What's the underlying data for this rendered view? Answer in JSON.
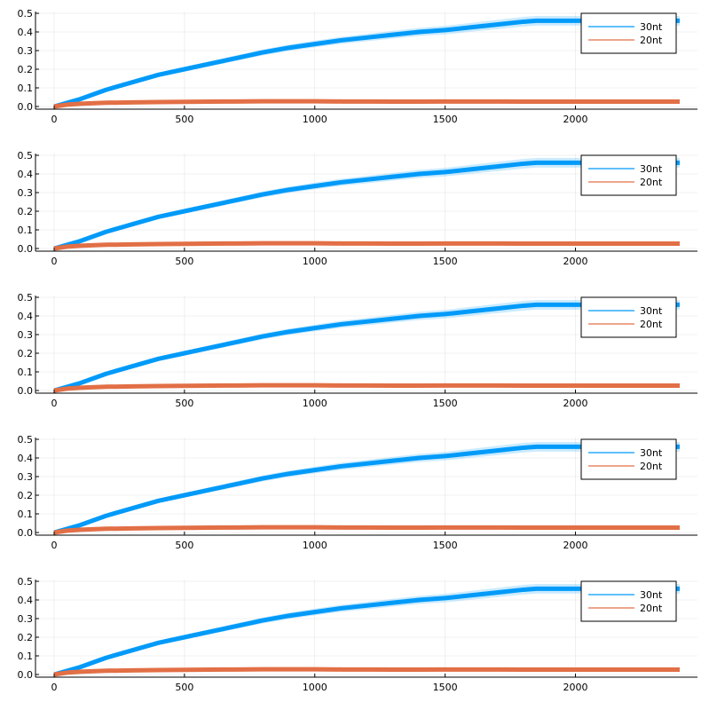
{
  "chart_data": [
    {
      "type": "line",
      "title": "",
      "xlabel": "",
      "ylabel": "",
      "xlim": [
        0,
        2400
      ],
      "ylim": [
        0,
        0.5
      ],
      "xticks": [
        "0",
        "500",
        "1000",
        "1500",
        "2000"
      ],
      "yticks": [
        "0.0",
        "0.1",
        "0.2",
        "0.3",
        "0.4",
        "0.5"
      ],
      "grid": true,
      "legend_position": "top-right",
      "series": [
        {
          "name": "30nt",
          "color": "#009af9",
          "x": [
            0,
            100,
            200,
            300,
            400,
            500,
            600,
            700,
            800,
            900,
            1000,
            1100,
            1200,
            1300,
            1400,
            1500,
            1600,
            1700,
            1800,
            1850,
            1900,
            2000,
            2100,
            2200,
            2300,
            2400
          ],
          "y": [
            0,
            0.04,
            0.09,
            0.13,
            0.17,
            0.2,
            0.23,
            0.26,
            0.29,
            0.315,
            0.335,
            0.355,
            0.37,
            0.385,
            0.4,
            0.41,
            0.425,
            0.44,
            0.455,
            0.46,
            0.46,
            0.46,
            0.46,
            0.46,
            0.46,
            0.46
          ],
          "band": [
            0,
            0.005,
            0.008,
            0.01,
            0.012,
            0.013,
            0.014,
            0.015,
            0.016,
            0.017,
            0.018,
            0.019,
            0.02,
            0.021,
            0.022,
            0.023,
            0.024,
            0.025,
            0.026,
            0.026,
            0.026,
            0.026,
            0.026,
            0.026,
            0.026,
            0.026
          ]
        },
        {
          "name": "20nt",
          "color": "#e26f46",
          "x": [
            0,
            50,
            100,
            200,
            300,
            400,
            500,
            600,
            700,
            800,
            900,
            1000,
            1100,
            1200,
            1300,
            1400,
            1500,
            1600,
            1700,
            1800,
            1900,
            2000,
            2100,
            2200,
            2300,
            2400
          ],
          "y": [
            0,
            0.01,
            0.015,
            0.02,
            0.022,
            0.024,
            0.025,
            0.026,
            0.027,
            0.028,
            0.028,
            0.028,
            0.027,
            0.027,
            0.026,
            0.026,
            0.027,
            0.027,
            0.027,
            0.026,
            0.026,
            0.026,
            0.026,
            0.026,
            0.026,
            0.026
          ]
        }
      ]
    },
    {
      "type": "line",
      "title": "",
      "xlabel": "",
      "ylabel": "",
      "xlim": [
        0,
        2400
      ],
      "ylim": [
        0,
        0.5
      ],
      "xticks": [
        "0",
        "500",
        "1000",
        "1500",
        "2000"
      ],
      "yticks": [
        "0.0",
        "0.1",
        "0.2",
        "0.3",
        "0.4",
        "0.5"
      ],
      "grid": true,
      "legend_position": "top-right",
      "series": [
        {
          "name": "30nt",
          "color": "#009af9",
          "x": [
            0,
            100,
            200,
            300,
            400,
            500,
            600,
            700,
            800,
            900,
            1000,
            1100,
            1200,
            1300,
            1400,
            1500,
            1600,
            1700,
            1800,
            1850,
            1900,
            2000,
            2100,
            2200,
            2300,
            2400
          ],
          "y": [
            0,
            0.04,
            0.09,
            0.13,
            0.17,
            0.2,
            0.23,
            0.26,
            0.29,
            0.315,
            0.335,
            0.355,
            0.37,
            0.385,
            0.4,
            0.41,
            0.425,
            0.44,
            0.455,
            0.46,
            0.46,
            0.46,
            0.46,
            0.46,
            0.46,
            0.46
          ],
          "band": [
            0,
            0.005,
            0.008,
            0.01,
            0.012,
            0.013,
            0.014,
            0.015,
            0.016,
            0.017,
            0.018,
            0.019,
            0.02,
            0.021,
            0.022,
            0.023,
            0.024,
            0.025,
            0.026,
            0.026,
            0.026,
            0.026,
            0.026,
            0.026,
            0.026,
            0.026
          ]
        },
        {
          "name": "20nt",
          "color": "#e26f46",
          "x": [
            0,
            50,
            100,
            200,
            300,
            400,
            500,
            600,
            700,
            800,
            900,
            1000,
            1100,
            1200,
            1300,
            1400,
            1500,
            1600,
            1700,
            1800,
            1900,
            2000,
            2100,
            2200,
            2300,
            2400
          ],
          "y": [
            0,
            0.01,
            0.015,
            0.02,
            0.022,
            0.024,
            0.025,
            0.026,
            0.027,
            0.028,
            0.028,
            0.028,
            0.027,
            0.027,
            0.026,
            0.026,
            0.027,
            0.027,
            0.027,
            0.026,
            0.026,
            0.026,
            0.026,
            0.026,
            0.026,
            0.026
          ]
        }
      ]
    },
    {
      "type": "line",
      "title": "",
      "xlabel": "",
      "ylabel": "",
      "xlim": [
        0,
        2400
      ],
      "ylim": [
        0,
        0.5
      ],
      "xticks": [
        "0",
        "500",
        "1000",
        "1500",
        "2000"
      ],
      "yticks": [
        "0.0",
        "0.1",
        "0.2",
        "0.3",
        "0.4",
        "0.5"
      ],
      "grid": true,
      "legend_position": "top-right",
      "series": [
        {
          "name": "30nt",
          "color": "#009af9",
          "x": [
            0,
            100,
            200,
            300,
            400,
            500,
            600,
            700,
            800,
            900,
            1000,
            1100,
            1200,
            1300,
            1400,
            1500,
            1600,
            1700,
            1800,
            1850,
            1900,
            2000,
            2100,
            2200,
            2300,
            2400
          ],
          "y": [
            0,
            0.04,
            0.09,
            0.13,
            0.17,
            0.2,
            0.23,
            0.26,
            0.29,
            0.315,
            0.335,
            0.355,
            0.37,
            0.385,
            0.4,
            0.41,
            0.425,
            0.44,
            0.455,
            0.46,
            0.46,
            0.46,
            0.46,
            0.46,
            0.46,
            0.46
          ],
          "band": [
            0,
            0.005,
            0.008,
            0.01,
            0.012,
            0.013,
            0.014,
            0.015,
            0.016,
            0.017,
            0.018,
            0.019,
            0.02,
            0.021,
            0.022,
            0.023,
            0.024,
            0.025,
            0.026,
            0.026,
            0.026,
            0.026,
            0.026,
            0.026,
            0.026,
            0.026
          ]
        },
        {
          "name": "20nt",
          "color": "#e26f46",
          "x": [
            0,
            50,
            100,
            200,
            300,
            400,
            500,
            600,
            700,
            800,
            900,
            1000,
            1100,
            1200,
            1300,
            1400,
            1500,
            1600,
            1700,
            1800,
            1900,
            2000,
            2100,
            2200,
            2300,
            2400
          ],
          "y": [
            0,
            0.01,
            0.015,
            0.02,
            0.022,
            0.024,
            0.025,
            0.026,
            0.027,
            0.028,
            0.028,
            0.028,
            0.027,
            0.027,
            0.026,
            0.026,
            0.027,
            0.027,
            0.027,
            0.026,
            0.026,
            0.026,
            0.026,
            0.026,
            0.026,
            0.026
          ]
        }
      ]
    },
    {
      "type": "line",
      "title": "",
      "xlabel": "",
      "ylabel": "",
      "xlim": [
        0,
        2400
      ],
      "ylim": [
        0,
        0.5
      ],
      "xticks": [
        "0",
        "500",
        "1000",
        "1500",
        "2000"
      ],
      "yticks": [
        "0.0",
        "0.1",
        "0.2",
        "0.3",
        "0.4",
        "0.5"
      ],
      "grid": true,
      "legend_position": "top-right",
      "series": [
        {
          "name": "30nt",
          "color": "#009af9",
          "x": [
            0,
            100,
            200,
            300,
            400,
            500,
            600,
            700,
            800,
            900,
            1000,
            1100,
            1200,
            1300,
            1400,
            1500,
            1600,
            1700,
            1800,
            1850,
            1900,
            2000,
            2100,
            2200,
            2300,
            2400
          ],
          "y": [
            0,
            0.04,
            0.09,
            0.13,
            0.17,
            0.2,
            0.23,
            0.26,
            0.29,
            0.315,
            0.335,
            0.355,
            0.37,
            0.385,
            0.4,
            0.41,
            0.425,
            0.44,
            0.455,
            0.46,
            0.46,
            0.46,
            0.46,
            0.46,
            0.46,
            0.46
          ],
          "band": [
            0,
            0.005,
            0.008,
            0.01,
            0.012,
            0.013,
            0.014,
            0.015,
            0.016,
            0.017,
            0.018,
            0.019,
            0.02,
            0.021,
            0.022,
            0.023,
            0.024,
            0.025,
            0.026,
            0.026,
            0.026,
            0.026,
            0.026,
            0.026,
            0.026,
            0.026
          ]
        },
        {
          "name": "20nt",
          "color": "#e26f46",
          "x": [
            0,
            50,
            100,
            200,
            300,
            400,
            500,
            600,
            700,
            800,
            900,
            1000,
            1100,
            1200,
            1300,
            1400,
            1500,
            1600,
            1700,
            1800,
            1900,
            2000,
            2100,
            2200,
            2300,
            2400
          ],
          "y": [
            0,
            0.01,
            0.015,
            0.02,
            0.022,
            0.024,
            0.025,
            0.026,
            0.027,
            0.028,
            0.028,
            0.028,
            0.027,
            0.027,
            0.026,
            0.026,
            0.027,
            0.027,
            0.027,
            0.026,
            0.026,
            0.026,
            0.026,
            0.026,
            0.026,
            0.026
          ]
        }
      ]
    },
    {
      "type": "line",
      "title": "",
      "xlabel": "",
      "ylabel": "",
      "xlim": [
        0,
        2400
      ],
      "ylim": [
        0,
        0.5
      ],
      "xticks": [
        "0",
        "500",
        "1000",
        "1500",
        "2000"
      ],
      "yticks": [
        "0.0",
        "0.1",
        "0.2",
        "0.3",
        "0.4",
        "0.5"
      ],
      "grid": true,
      "legend_position": "top-right",
      "series": [
        {
          "name": "30nt",
          "color": "#009af9",
          "x": [
            0,
            100,
            200,
            300,
            400,
            500,
            600,
            700,
            800,
            900,
            1000,
            1100,
            1200,
            1300,
            1400,
            1500,
            1600,
            1700,
            1800,
            1850,
            1900,
            2000,
            2100,
            2200,
            2300,
            2400
          ],
          "y": [
            0,
            0.04,
            0.09,
            0.13,
            0.17,
            0.2,
            0.23,
            0.26,
            0.29,
            0.315,
            0.335,
            0.355,
            0.37,
            0.385,
            0.4,
            0.41,
            0.425,
            0.44,
            0.455,
            0.46,
            0.46,
            0.46,
            0.46,
            0.46,
            0.46,
            0.46
          ],
          "band": [
            0,
            0.005,
            0.008,
            0.01,
            0.012,
            0.013,
            0.014,
            0.015,
            0.016,
            0.017,
            0.018,
            0.019,
            0.02,
            0.021,
            0.022,
            0.023,
            0.024,
            0.025,
            0.026,
            0.026,
            0.026,
            0.026,
            0.026,
            0.026,
            0.026,
            0.026
          ]
        },
        {
          "name": "20nt",
          "color": "#e26f46",
          "x": [
            0,
            50,
            100,
            200,
            300,
            400,
            500,
            600,
            700,
            800,
            900,
            1000,
            1100,
            1200,
            1300,
            1400,
            1500,
            1600,
            1700,
            1800,
            1900,
            2000,
            2100,
            2200,
            2300,
            2400
          ],
          "y": [
            0,
            0.01,
            0.015,
            0.02,
            0.022,
            0.024,
            0.025,
            0.026,
            0.027,
            0.028,
            0.028,
            0.028,
            0.027,
            0.027,
            0.026,
            0.026,
            0.027,
            0.027,
            0.027,
            0.026,
            0.026,
            0.026,
            0.026,
            0.026,
            0.026,
            0.026
          ]
        }
      ]
    }
  ]
}
